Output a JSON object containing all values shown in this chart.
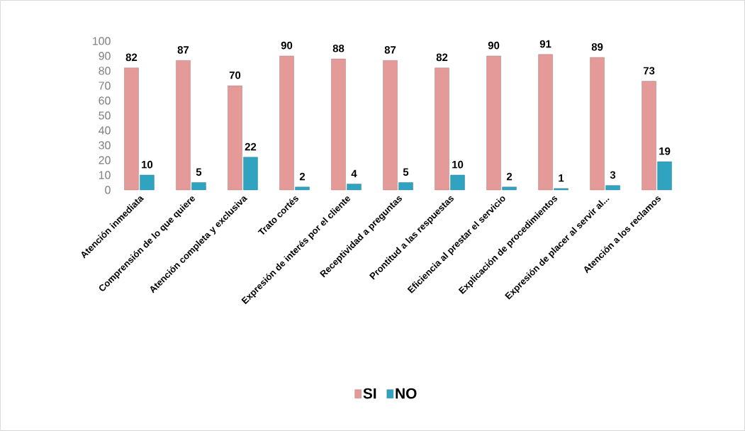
{
  "chart_data": {
    "type": "bar",
    "categories": [
      "Atención inmediata",
      "Comprensión de lo que quiere",
      "Atención completa y exclusiva",
      "Trato cortés",
      "Expresión de interés por el cliente",
      "Receptividad a preguntas",
      "Prontitud a las respuestas",
      "Eficiencia al prestar el servicio",
      "Explicación de procedimientos",
      "Expresión de placer al servir al...",
      "Atención a los reclamos"
    ],
    "series": [
      {
        "name": "SI",
        "color": "#e39a98",
        "values": [
          82,
          87,
          70,
          90,
          88,
          87,
          82,
          90,
          91,
          89,
          73
        ]
      },
      {
        "name": "NO",
        "color": "#2fa3bf",
        "values": [
          10,
          5,
          22,
          2,
          4,
          5,
          10,
          2,
          1,
          3,
          19
        ]
      }
    ],
    "ylim": [
      0,
      100
    ],
    "yticks": [
      0,
      10,
      20,
      30,
      40,
      50,
      60,
      70,
      80,
      90,
      100
    ],
    "data_labels": true,
    "legend": "bottom"
  }
}
